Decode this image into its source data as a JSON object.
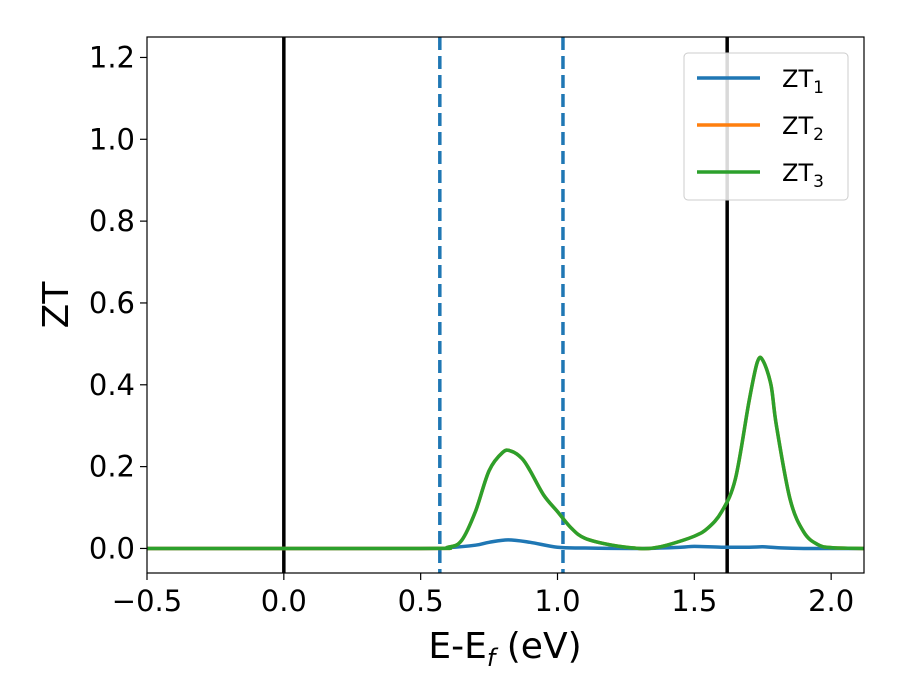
{
  "chart_data": {
    "type": "line",
    "title": "",
    "xlabel": "E-E",
    "xlabel_sub": "f",
    "xlabel_unit": " (eV)",
    "ylabel": "ZT",
    "xlim": [
      -0.5,
      2.12
    ],
    "ylim": [
      -0.06,
      1.25
    ],
    "x_ticks": [
      -0.5,
      0.0,
      0.5,
      1.0,
      1.5,
      2.0
    ],
    "x_tick_labels": [
      "−0.5",
      "0.0",
      "0.5",
      "1.0",
      "1.5",
      "2.0"
    ],
    "y_ticks": [
      0.0,
      0.2,
      0.4,
      0.6,
      0.8,
      1.0,
      1.2
    ],
    "y_tick_labels": [
      "0.0",
      "0.2",
      "0.4",
      "0.6",
      "0.8",
      "1.0",
      "1.2"
    ],
    "grid": false,
    "legend_position": "top-right",
    "vlines": [
      {
        "x": 0.0,
        "color": "#000000",
        "style": "solid"
      },
      {
        "x": 1.62,
        "color": "#000000",
        "style": "solid"
      },
      {
        "x": 0.57,
        "color": "#1f77b4",
        "style": "dashed"
      },
      {
        "x": 1.02,
        "color": "#1f77b4",
        "style": "dashed"
      }
    ],
    "series": [
      {
        "name": "ZT",
        "name_sub": "1",
        "color": "#1f77b4",
        "x": [
          -0.5,
          0.5,
          0.6,
          0.7,
          0.75,
          0.82,
          0.9,
          1.0,
          1.1,
          1.3,
          1.45,
          1.5,
          1.6,
          1.7,
          1.75,
          1.8,
          1.9,
          2.12
        ],
        "y": [
          0.0,
          0.0,
          0.002,
          0.008,
          0.015,
          0.021,
          0.015,
          0.003,
          0.001,
          0.0,
          0.003,
          0.005,
          0.003,
          0.003,
          0.004,
          0.002,
          0.0,
          0.0
        ]
      },
      {
        "name": "ZT",
        "name_sub": "2",
        "color": "#ff7f0e",
        "x": [
          -0.5,
          0.5,
          0.6,
          0.65,
          0.7,
          0.75,
          0.8,
          0.83,
          0.87,
          0.9,
          0.95,
          1.0,
          1.05,
          1.1,
          1.2,
          1.3,
          1.35,
          1.4,
          1.5,
          1.55,
          1.6,
          1.65,
          1.7,
          1.73,
          1.75,
          1.78,
          1.8,
          1.85,
          1.9,
          1.95,
          2.0,
          2.12
        ],
        "y": [
          0.0,
          0.0,
          0.003,
          0.02,
          0.09,
          0.19,
          0.235,
          0.238,
          0.22,
          0.19,
          0.13,
          0.09,
          0.05,
          0.025,
          0.008,
          0.0,
          0.001,
          0.008,
          0.03,
          0.05,
          0.09,
          0.17,
          0.36,
          0.455,
          0.46,
          0.4,
          0.3,
          0.12,
          0.04,
          0.01,
          0.002,
          0.0
        ]
      },
      {
        "name": "ZT",
        "name_sub": "3",
        "color": "#2ca02c",
        "x": [
          -0.5,
          0.5,
          0.6,
          0.65,
          0.7,
          0.75,
          0.8,
          0.83,
          0.87,
          0.9,
          0.95,
          1.0,
          1.05,
          1.1,
          1.2,
          1.3,
          1.35,
          1.4,
          1.5,
          1.55,
          1.6,
          1.65,
          1.7,
          1.73,
          1.75,
          1.78,
          1.8,
          1.85,
          1.9,
          1.95,
          2.0,
          2.12
        ],
        "y": [
          0.0,
          0.0,
          0.003,
          0.02,
          0.09,
          0.19,
          0.235,
          0.238,
          0.22,
          0.19,
          0.13,
          0.09,
          0.05,
          0.025,
          0.008,
          0.0,
          0.001,
          0.008,
          0.03,
          0.05,
          0.09,
          0.17,
          0.36,
          0.455,
          0.46,
          0.4,
          0.3,
          0.12,
          0.04,
          0.01,
          0.002,
          0.0
        ]
      }
    ]
  }
}
